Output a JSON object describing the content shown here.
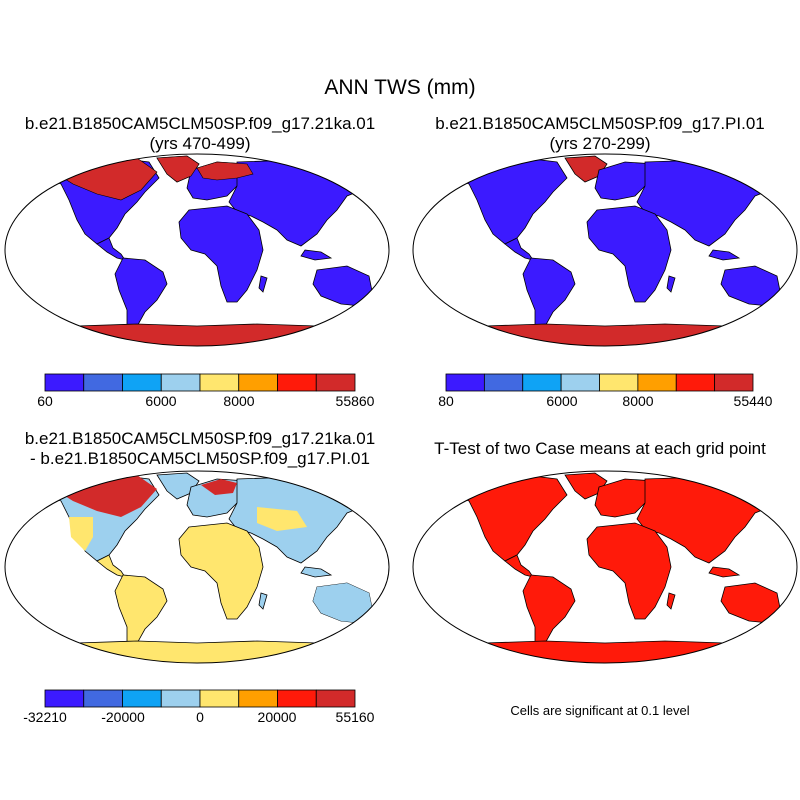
{
  "title": "ANN TWS (mm)",
  "colors": {
    "c0": "#3c1aff",
    "c1": "#4169e1",
    "c2": "#0fa3f5",
    "c3": "#9dd0ee",
    "c4": "#ffe66e",
    "c5": "#ff9f00",
    "c6": "#ff1a0a",
    "c7": "#d22a2a",
    "land_border": "#000000"
  },
  "panels": [
    {
      "id": "case1",
      "title_line1": "b.e21.B1850CAM5CLM50SP.f09_g17.21ka.01",
      "title_line2": "(yrs 470-499)",
      "colorbar_labels": [
        "60",
        "6000",
        "8000",
        "55860"
      ]
    },
    {
      "id": "case2",
      "title_line1": "b.e21.B1850CAM5CLM50SP.f09_g17.PI.01",
      "title_line2": "(yrs 270-299)",
      "colorbar_labels": [
        "80",
        "6000",
        "8000",
        "55440"
      ]
    },
    {
      "id": "diff",
      "title_line1": "b.e21.B1850CAM5CLM50SP.f09_g17.21ka.01",
      "title_line2": "- b.e21.B1850CAM5CLM50SP.f09_g17.PI.01",
      "colorbar_labels": [
        "-32210",
        "-20000",
        "0",
        "20000",
        "55160"
      ]
    },
    {
      "id": "ttest",
      "title_line1": "T-Test of two Case means at each grid point",
      "note": "Cells are significant at 0.1 level"
    }
  ]
}
